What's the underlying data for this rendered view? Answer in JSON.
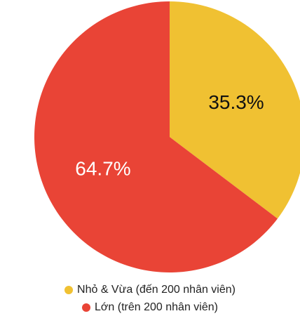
{
  "chart_data": {
    "type": "pie",
    "categories": [
      "Nhỏ & Vừa (đến 200 nhân viên)",
      "Lớn (trên 200 nhân viên)"
    ],
    "values": [
      35.3,
      64.7
    ],
    "value_labels": [
      "35.3%",
      "64.7%"
    ],
    "colors": [
      "#f0c132",
      "#e94436"
    ]
  }
}
